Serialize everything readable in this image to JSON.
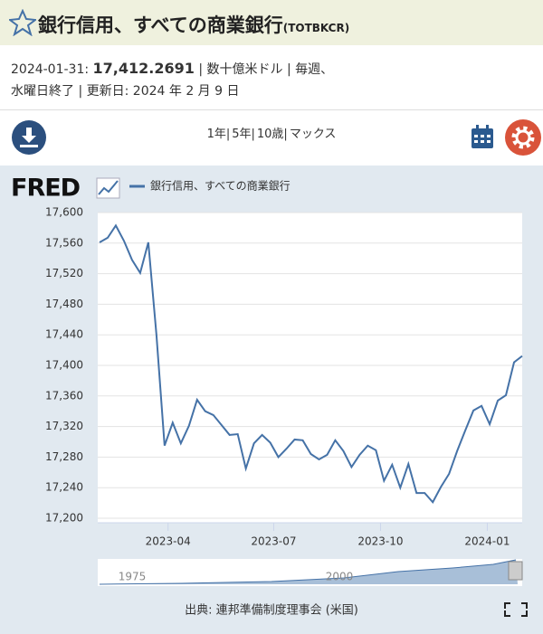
{
  "header": {
    "title": "銀行信用、すべての商業銀行",
    "code": "(TOTBKCR)"
  },
  "info": {
    "date": "2024-01-31:",
    "value": "17,412.2691",
    "line1_rest": "| 数十億米ドル | 毎週、",
    "line2": "水曜日終了 | 更新日: 2024 年 2 月 9 日"
  },
  "toolbar": {
    "ranges": [
      "1年|",
      "5年|",
      "10歳|",
      "マックス"
    ]
  },
  "logo": "FRED",
  "navigator": {
    "labels": [
      "1975",
      "2000"
    ]
  },
  "source": "出典: 連邦準備制度理事会 (米国)",
  "chart_data": {
    "type": "line",
    "x": [
      0,
      1,
      2,
      3,
      4,
      5,
      6,
      7,
      8,
      9,
      10,
      11,
      12,
      13,
      14,
      15,
      16,
      17,
      18,
      19,
      20,
      21,
      22,
      23,
      24,
      25,
      26,
      27,
      28,
      29,
      30,
      31,
      32,
      33,
      34,
      35,
      36,
      37,
      38,
      39,
      40,
      41,
      42,
      43,
      44,
      45,
      46,
      47,
      48,
      49,
      50,
      51,
      52
    ],
    "xlim": [
      0,
      52
    ],
    "xticks": [
      {
        "value": 8.43,
        "label": "2023-04"
      },
      {
        "value": 21.43,
        "label": "2023-07"
      },
      {
        "value": 34.57,
        "label": "2023-10"
      },
      {
        "value": 47.71,
        "label": "2024-01"
      }
    ],
    "ylim": [
      17200,
      17600
    ],
    "yticks": [
      {
        "value": 17200,
        "label": "17,200"
      },
      {
        "value": 17240,
        "label": "17,240"
      },
      {
        "value": 17280,
        "label": "17,280"
      },
      {
        "value": 17320,
        "label": "17,320"
      },
      {
        "value": 17360,
        "label": "17,360"
      },
      {
        "value": 17400,
        "label": "17,400"
      },
      {
        "value": 17440,
        "label": "17,440"
      },
      {
        "value": 17480,
        "label": "17,480"
      },
      {
        "value": 17520,
        "label": "17,520"
      },
      {
        "value": 17560,
        "label": "17,560"
      },
      {
        "value": 17600,
        "label": "17,600"
      }
    ],
    "grid": true,
    "series": [
      {
        "name": "銀行信用、すべての商業銀行",
        "color": "#4572a7",
        "values": [
          17561,
          17567,
          17583,
          17563,
          17538,
          17521,
          17561,
          17440,
          17295,
          17325,
          17298,
          17321,
          17355,
          17340,
          17335,
          17322,
          17309,
          17310,
          17265,
          17298,
          17309,
          17299,
          17280,
          17291,
          17303,
          17302,
          17284,
          17277,
          17283,
          17302,
          17288,
          17267,
          17283,
          17295,
          17289,
          17249,
          17270,
          17240,
          17271,
          17233,
          17233,
          17221,
          17241,
          17258,
          17288,
          17315,
          17341,
          17347,
          17323,
          17354,
          17361,
          17404,
          17412.2691
        ]
      }
    ]
  }
}
